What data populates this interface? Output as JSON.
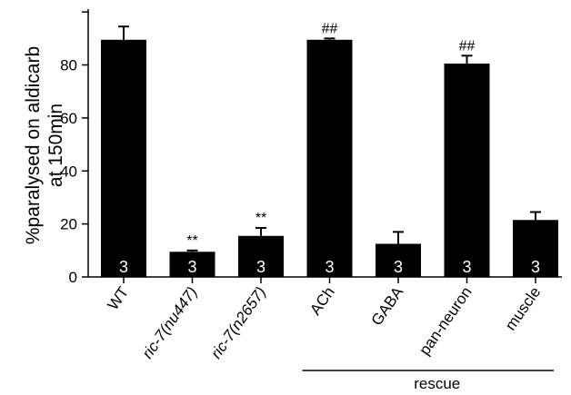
{
  "chart_data": {
    "type": "bar",
    "ylabel": "%paralysed on aldicarb",
    "ylabel2": "at 150min",
    "ylim": [
      0,
      100
    ],
    "yticks": [
      0,
      20,
      40,
      60,
      80
    ],
    "categories": [
      {
        "label": "WT",
        "italic": false
      },
      {
        "label": "ric-7(nu447)",
        "italic": true
      },
      {
        "label": "ric-7(n2657)",
        "italic": true
      },
      {
        "label": "ACh",
        "italic": false
      },
      {
        "label": "GABA",
        "italic": false
      },
      {
        "label": "pan-neuron",
        "italic": false
      },
      {
        "label": "muscle",
        "italic": false
      }
    ],
    "values": [
      89.5,
      9.5,
      15.5,
      89.5,
      12.5,
      80.5,
      21.5
    ],
    "errors": [
      5,
      0.5,
      3,
      0.5,
      4.5,
      3,
      3
    ],
    "n_labels": [
      "3",
      "3",
      "3",
      "3",
      "3",
      "3",
      "3"
    ],
    "significance": [
      "",
      "**",
      "**",
      "##",
      "",
      "##",
      ""
    ],
    "group_label": "rescue",
    "group_start_index": 3,
    "group_end_index": 6,
    "bar_color": "#000000"
  }
}
